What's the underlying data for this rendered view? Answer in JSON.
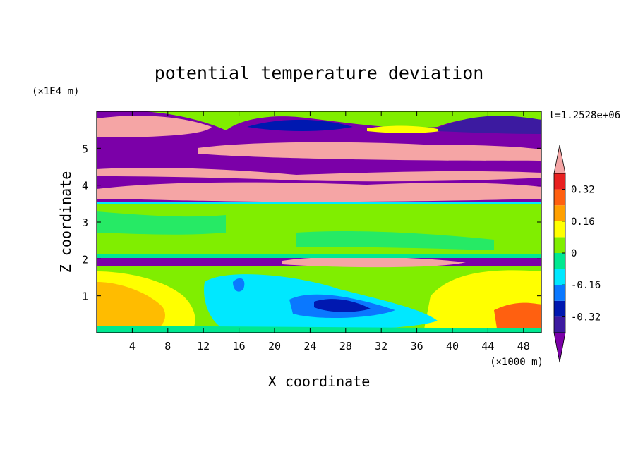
{
  "chart_data": {
    "type": "heatmap",
    "title": "potential temperature deviation",
    "xlabel": "X coordinate",
    "ylabel": "Z coordinate",
    "x_unit": "(×1000 m)",
    "y_unit": "(×1E4 m)",
    "time_label": "t=1.2528e+06",
    "xlim": [
      0,
      50
    ],
    "ylim": [
      0,
      6
    ],
    "x_ticks": [
      4,
      8,
      12,
      16,
      20,
      24,
      28,
      32,
      36,
      40,
      44,
      48
    ],
    "y_ticks": [
      1,
      2,
      3,
      4,
      5
    ],
    "colorbar": {
      "levels": [
        -0.4,
        -0.32,
        -0.24,
        -0.16,
        -0.08,
        0,
        0.08,
        0.16,
        0.24,
        0.32,
        0.4
      ],
      "tick_labels": [
        "0.32",
        "0.16",
        "0",
        "-0.16",
        "-0.32"
      ],
      "tick_values": [
        0.32,
        0.16,
        0,
        -0.16,
        -0.32
      ],
      "colors_low_to_high": [
        "#7b00a8",
        "#3c1aa0",
        "#0018b0",
        "#0a78ff",
        "#00e8ff",
        "#00e890",
        "#80ee00",
        "#ffff00",
        "#ffa000",
        "#ff6010",
        "#e82020",
        "#f5a5a5"
      ],
      "extend": "both"
    },
    "field_bands": [
      {
        "z": [
          5.55,
          6.0
        ],
        "value": 0.05
      },
      {
        "z": [
          5.2,
          5.55
        ],
        "value": -0.44
      },
      {
        "z": [
          4.9,
          5.2
        ],
        "value": -0.44
      },
      {
        "z": [
          4.75,
          4.9
        ],
        "value": 0.44
      },
      {
        "z": [
          4.4,
          4.75
        ],
        "value": -0.44
      },
      {
        "z": [
          4.2,
          4.4
        ],
        "value": 0.44
      },
      {
        "z": [
          3.95,
          4.2
        ],
        "value": -0.44
      },
      {
        "z": [
          3.7,
          3.95
        ],
        "value": 0.44
      },
      {
        "z": [
          3.55,
          3.7
        ],
        "value": -0.44
      },
      {
        "z": [
          2.0,
          3.5
        ],
        "value": 0.05
      },
      {
        "z": [
          1.85,
          2.0
        ],
        "value": -0.44
      },
      {
        "z": [
          0.0,
          1.85
        ],
        "value": 0.05
      }
    ]
  },
  "colors": {
    "magenta_violet": "#7b00a8",
    "pink": "#f5a5a5",
    "green": "#80ee00",
    "yellow": "#ffff00",
    "cyan": "#00e8ff",
    "blue": "#0018b0"
  }
}
